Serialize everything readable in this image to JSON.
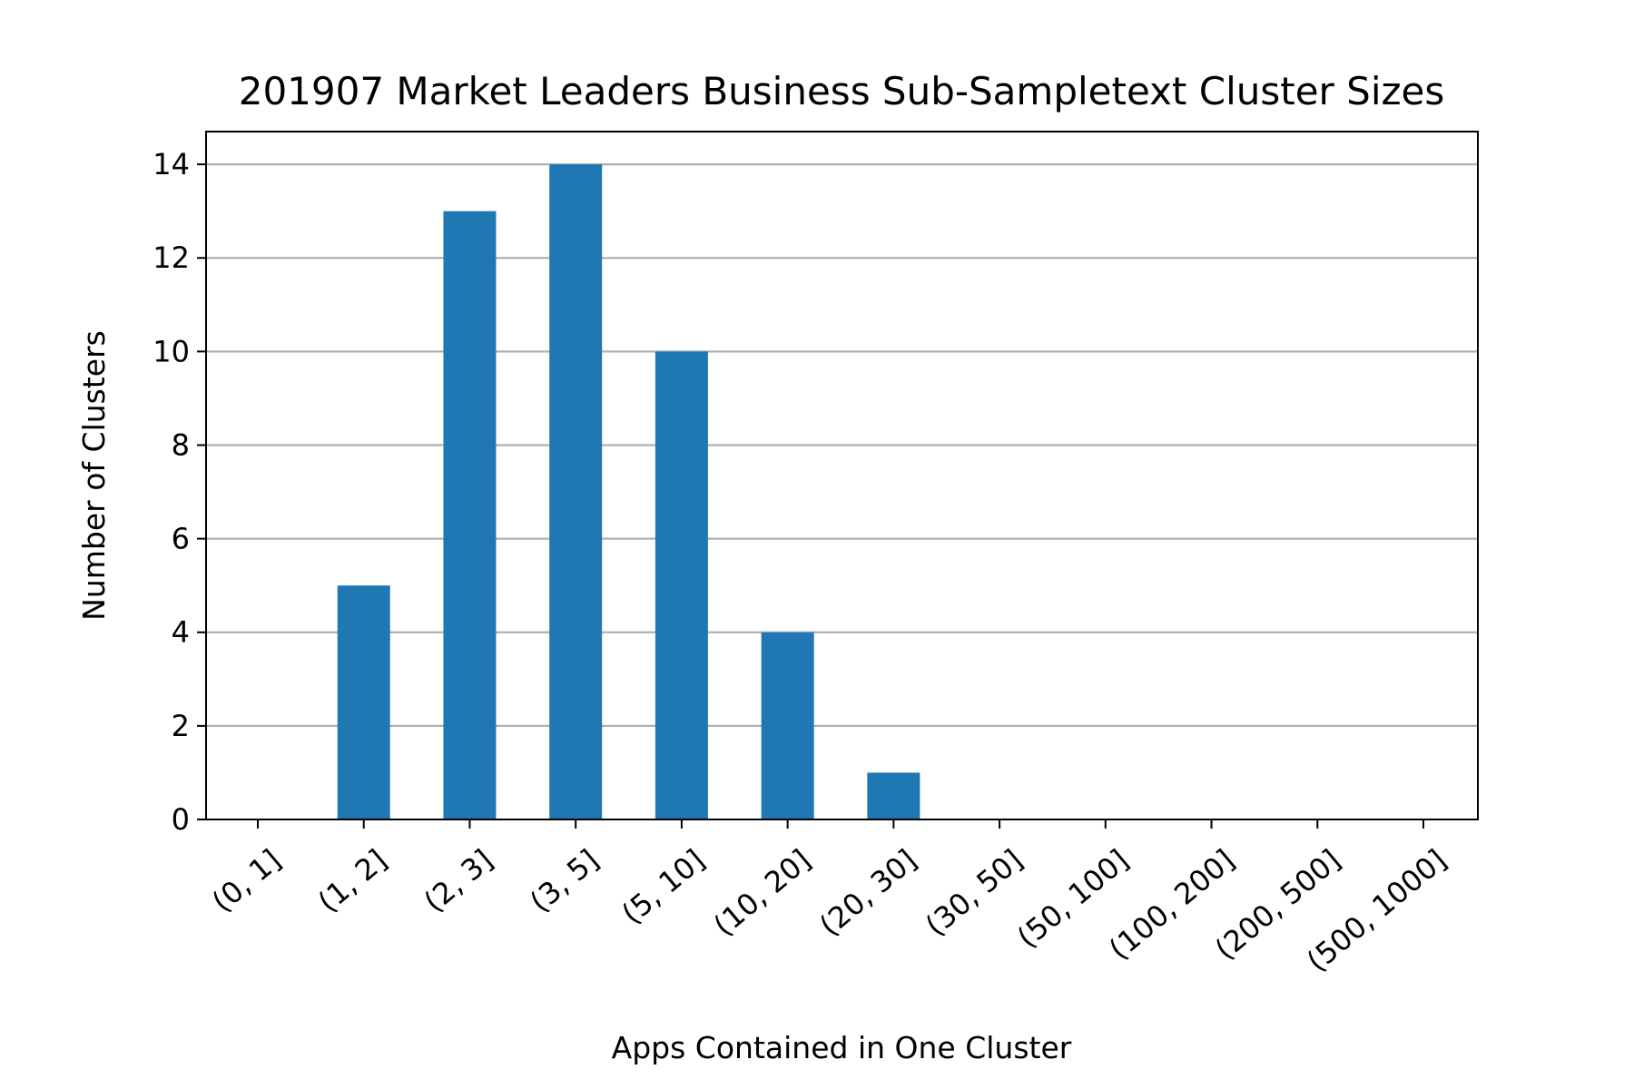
{
  "chart_data": {
    "type": "bar",
    "title": "201907 Market Leaders Business Sub-Sampletext Cluster Sizes",
    "xlabel": "Apps Contained in One Cluster",
    "ylabel": "Number of Clusters",
    "categories": [
      "(0, 1]",
      "(1, 2]",
      "(2, 3]",
      "(3, 5]",
      "(5, 10]",
      "(10, 20]",
      "(20, 30]",
      "(30, 50]",
      "(50, 100]",
      "(100, 200]",
      "(200, 500]",
      "(500, 1000]"
    ],
    "values": [
      0,
      5,
      13,
      14,
      10,
      4,
      1,
      0,
      0,
      0,
      0,
      0
    ],
    "ylim": [
      0,
      14.7
    ],
    "yticks": [
      0,
      2,
      4,
      6,
      8,
      10,
      12,
      14
    ],
    "grid": "y",
    "bar_color": "#1f77b4",
    "grid_color": "#b0b0b0",
    "xtick_rotation_deg": 40
  }
}
